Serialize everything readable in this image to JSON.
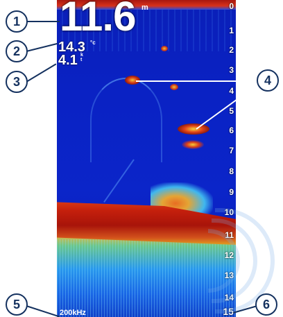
{
  "readouts": {
    "depth_value": "11.6",
    "depth_unit": "m",
    "temperature_value": "14.3",
    "temperature_unit": "°c",
    "speed_value": "4.1",
    "speed_unit_top": "k",
    "speed_unit_bottom": "t",
    "frequency": "200kHz"
  },
  "depth_scale": [
    "0",
    "1",
    "2",
    "3",
    "4",
    "5",
    "6",
    "7",
    "8",
    "9",
    "10",
    "11",
    "12",
    "13",
    "14",
    "15"
  ],
  "callouts": [
    "1",
    "2",
    "3",
    "4",
    "5",
    "6"
  ],
  "colors": {
    "water": "#0b25c9",
    "bottom": "#c41f0c",
    "callout_border": "#14315f"
  }
}
